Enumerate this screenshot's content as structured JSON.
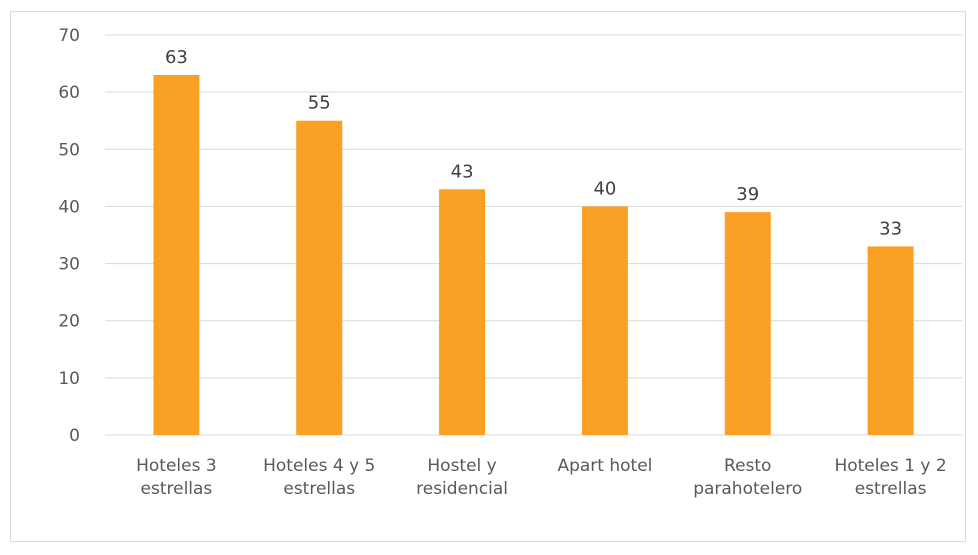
{
  "chart_data": {
    "type": "bar",
    "categories": [
      [
        "Hoteles 3",
        "estrellas"
      ],
      [
        "Hoteles 4 y 5",
        "estrellas"
      ],
      [
        "Hostel y",
        "residencial"
      ],
      [
        "Apart hotel"
      ],
      [
        "Resto",
        "parahotelero"
      ],
      [
        "Hoteles 1 y 2",
        "estrellas"
      ]
    ],
    "values": [
      63,
      55,
      43,
      40,
      39,
      33
    ],
    "data_labels": [
      "63",
      "55",
      "43",
      "40",
      "39",
      "33"
    ],
    "ylim": [
      0,
      70
    ],
    "yticks": [
      "0",
      "10",
      "20",
      "30",
      "40",
      "50",
      "60",
      "70"
    ],
    "grid": true,
    "bar_color": "#F9A025",
    "grid_color": "#d9d9d9"
  }
}
